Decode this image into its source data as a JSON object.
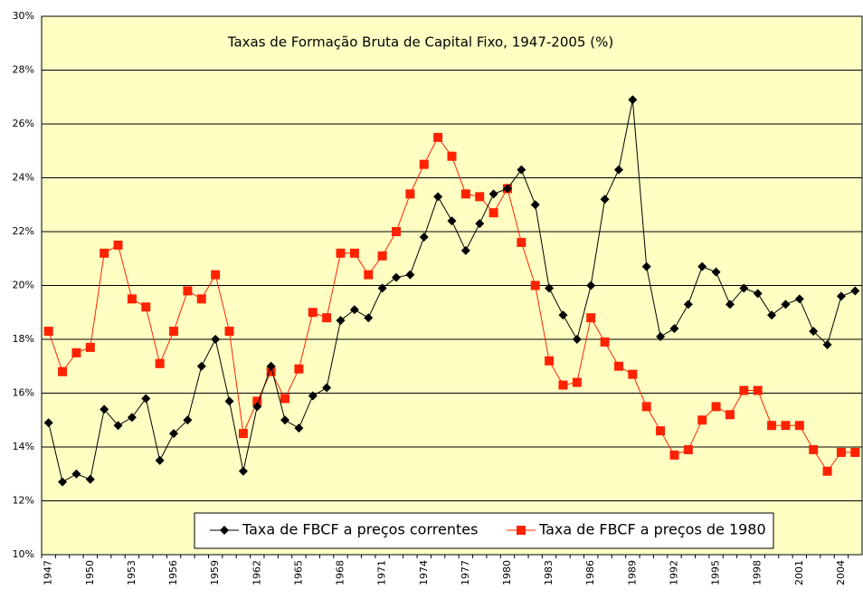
{
  "chart_data": {
    "type": "line",
    "title": "Taxas de Formação Bruta de Capital Fixo, 1947-2005 (%)",
    "categories": [
      "1947",
      null,
      null,
      "1950",
      null,
      null,
      "1953",
      null,
      null,
      "1956",
      null,
      null,
      "1959",
      null,
      null,
      "1962",
      null,
      null,
      "1965",
      null,
      null,
      "1968",
      null,
      null,
      "1971",
      null,
      null,
      "1974",
      null,
      null,
      "1977",
      null,
      null,
      "1980",
      null,
      null,
      "1983",
      null,
      null,
      "1986",
      null,
      null,
      "1989",
      null,
      null,
      "1992",
      null,
      null,
      "1995",
      null,
      null,
      "1998",
      null,
      null,
      "2001",
      null,
      null,
      "2004",
      null
    ],
    "series": [
      {
        "name": "Taxa de FBCF a preços correntes",
        "color": "#000000",
        "marker": "diamond",
        "values": [
          14.9,
          12.7,
          13.0,
          12.8,
          15.4,
          14.8,
          15.1,
          15.8,
          13.5,
          14.5,
          15.0,
          17.0,
          18.0,
          15.7,
          13.1,
          15.5,
          17.0,
          15.0,
          14.7,
          15.9,
          16.2,
          18.7,
          19.1,
          18.8,
          19.9,
          20.3,
          20.4,
          21.8,
          23.3,
          22.4,
          21.3,
          22.3,
          23.4,
          23.6,
          24.3,
          23.0,
          19.9,
          18.9,
          18.0,
          20.0,
          23.2,
          24.3,
          26.9,
          20.7,
          18.1,
          18.4,
          19.3,
          20.7,
          20.5,
          19.3,
          19.9,
          19.7,
          18.9,
          19.3,
          19.5,
          18.3,
          17.8,
          19.6,
          19.8
        ]
      },
      {
        "name": "Taxa de FBCF a preços de 1980",
        "color": "#ff2200",
        "marker": "square",
        "values": [
          18.3,
          16.8,
          17.5,
          17.7,
          21.2,
          21.5,
          19.5,
          19.2,
          17.1,
          18.3,
          19.8,
          19.5,
          20.4,
          18.3,
          14.5,
          15.7,
          16.8,
          15.8,
          16.9,
          19.0,
          18.8,
          21.2,
          21.2,
          20.4,
          21.1,
          22.0,
          23.4,
          24.5,
          25.5,
          24.8,
          23.4,
          23.3,
          22.7,
          23.6,
          21.6,
          20.0,
          17.2,
          16.3,
          16.4,
          18.8,
          17.9,
          17.0,
          16.7,
          15.5,
          14.6,
          13.7,
          13.9,
          15.0,
          15.5,
          15.2,
          16.1,
          16.1,
          14.8,
          14.8,
          14.8,
          13.9,
          13.1,
          13.8,
          13.8
        ]
      }
    ],
    "ylim": [
      10,
      30
    ],
    "yticks": [
      {
        "value": 10,
        "label": "10%"
      },
      {
        "value": 12,
        "label": "12%"
      },
      {
        "value": 14,
        "label": "14%"
      },
      {
        "value": 16,
        "label": "16%"
      },
      {
        "value": 18,
        "label": "18%"
      },
      {
        "value": 20,
        "label": "20%"
      },
      {
        "value": 22,
        "label": "22%"
      },
      {
        "value": 24,
        "label": "24%"
      },
      {
        "value": 26,
        "label": "26%"
      },
      {
        "value": 28,
        "label": "28%"
      },
      {
        "value": 30,
        "label": "30%"
      }
    ],
    "grid": true,
    "background": "#ffffc4"
  }
}
